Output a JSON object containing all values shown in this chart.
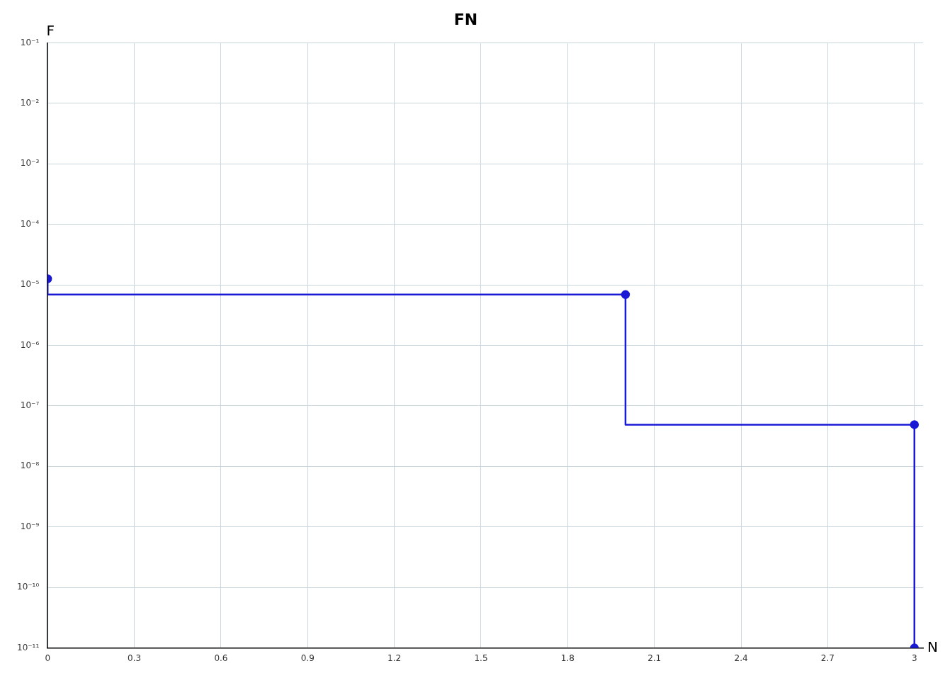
{
  "chart_data": {
    "type": "step",
    "title": "FN",
    "xlabel": "N",
    "ylabel": "F",
    "x": [
      0,
      2,
      3,
      3
    ],
    "series": [
      {
        "color": "#1a1ad6",
        "values": [
          1.26e-05,
          6.9e-06,
          4.9e-08,
          1e-11
        ]
      }
    ],
    "log": "y",
    "xlim": [
      0,
      3.03
    ],
    "ylim": [
      1e-11,
      0.1
    ],
    "xticks": [
      0,
      0.3,
      0.6,
      0.9,
      1.2,
      1.5,
      1.8,
      2.1,
      2.4,
      2.7,
      3
    ],
    "yticks": [
      {
        "value": 1e-11,
        "label": "10⁻¹¹"
      },
      {
        "value": 1e-10,
        "label": "10⁻¹⁰"
      },
      {
        "value": 1e-09,
        "label": "10⁻⁹"
      },
      {
        "value": 1e-08,
        "label": "10⁻⁸"
      },
      {
        "value": 1e-07,
        "label": "10⁻⁷"
      },
      {
        "value": 1e-06,
        "label": "10⁻⁶"
      },
      {
        "value": 1e-05,
        "label": "10⁻⁵"
      },
      {
        "value": 0.0001,
        "label": "10⁻⁴"
      },
      {
        "value": 0.001,
        "label": "10⁻³"
      },
      {
        "value": 0.01,
        "label": "10⁻²"
      },
      {
        "value": 0.1,
        "label": "10⁻¹"
      }
    ],
    "grid": true,
    "legend": false,
    "marker": "circle",
    "line_style": "solid"
  }
}
